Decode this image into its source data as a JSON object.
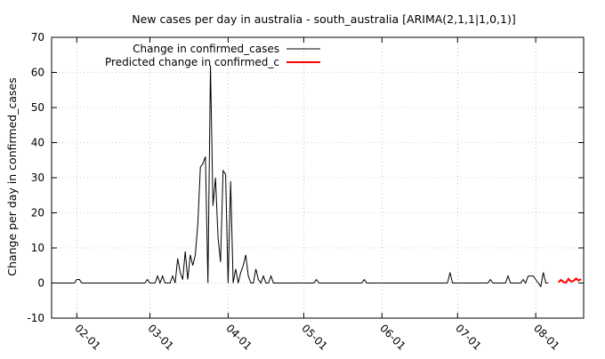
{
  "chart_data": {
    "type": "line",
    "title": "New cases per day in australia - south_australia [ARIMA(2,1,1|1,0,1)]",
    "ylabel": "Change per day in confirmed_cases",
    "xlabel": "",
    "ylim": [
      -10,
      70
    ],
    "yticks": [
      -10,
      0,
      10,
      20,
      30,
      40,
      50,
      60,
      70
    ],
    "xlim": [
      "2020-01-22",
      "2020-08-20"
    ],
    "xticks": [
      {
        "date": "2020-02-01",
        "label": "02-01"
      },
      {
        "date": "2020-03-01",
        "label": "03-01"
      },
      {
        "date": "2020-04-01",
        "label": "04-01"
      },
      {
        "date": "2020-05-01",
        "label": "05-01"
      },
      {
        "date": "2020-06-01",
        "label": "06-01"
      },
      {
        "date": "2020-07-01",
        "label": "07-01"
      },
      {
        "date": "2020-08-01",
        "label": "08-01"
      }
    ],
    "grid": true,
    "legend_position": "top-left",
    "series": [
      {
        "name": "Change in confirmed_cases",
        "color": "#000000",
        "points": [
          [
            "2020-01-22",
            0
          ],
          [
            "2020-01-31",
            0
          ],
          [
            "2020-02-01",
            1
          ],
          [
            "2020-02-02",
            1
          ],
          [
            "2020-02-03",
            0
          ],
          [
            "2020-02-28",
            0
          ],
          [
            "2020-02-29",
            1
          ],
          [
            "2020-03-01",
            0
          ],
          [
            "2020-03-03",
            0
          ],
          [
            "2020-03-04",
            2
          ],
          [
            "2020-03-05",
            0
          ],
          [
            "2020-03-06",
            2
          ],
          [
            "2020-03-07",
            0
          ],
          [
            "2020-03-09",
            0
          ],
          [
            "2020-03-10",
            2
          ],
          [
            "2020-03-11",
            0
          ],
          [
            "2020-03-12",
            7
          ],
          [
            "2020-03-13",
            3
          ],
          [
            "2020-03-14",
            1
          ],
          [
            "2020-03-15",
            9
          ],
          [
            "2020-03-16",
            1
          ],
          [
            "2020-03-17",
            8
          ],
          [
            "2020-03-18",
            5
          ],
          [
            "2020-03-19",
            8
          ],
          [
            "2020-03-20",
            17
          ],
          [
            "2020-03-21",
            33
          ],
          [
            "2020-03-22",
            34
          ],
          [
            "2020-03-23",
            36
          ],
          [
            "2020-03-24",
            0
          ],
          [
            "2020-03-25",
            62
          ],
          [
            "2020-03-26",
            22
          ],
          [
            "2020-03-27",
            30
          ],
          [
            "2020-03-28",
            13
          ],
          [
            "2020-03-29",
            6
          ],
          [
            "2020-03-30",
            32
          ],
          [
            "2020-03-31",
            31
          ],
          [
            "2020-04-01",
            0
          ],
          [
            "2020-04-02",
            29
          ],
          [
            "2020-04-03",
            0
          ],
          [
            "2020-04-04",
            4
          ],
          [
            "2020-04-05",
            0
          ],
          [
            "2020-04-06",
            3
          ],
          [
            "2020-04-07",
            5
          ],
          [
            "2020-04-08",
            8
          ],
          [
            "2020-04-09",
            2
          ],
          [
            "2020-04-10",
            0
          ],
          [
            "2020-04-11",
            0
          ],
          [
            "2020-04-12",
            4
          ],
          [
            "2020-04-13",
            1
          ],
          [
            "2020-04-14",
            0
          ],
          [
            "2020-04-15",
            2
          ],
          [
            "2020-04-16",
            0
          ],
          [
            "2020-04-17",
            0
          ],
          [
            "2020-04-18",
            2
          ],
          [
            "2020-04-19",
            0
          ],
          [
            "2020-05-05",
            0
          ],
          [
            "2020-05-06",
            1
          ],
          [
            "2020-05-07",
            0
          ],
          [
            "2020-05-24",
            0
          ],
          [
            "2020-05-25",
            1
          ],
          [
            "2020-05-26",
            0
          ],
          [
            "2020-06-27",
            0
          ],
          [
            "2020-06-28",
            3
          ],
          [
            "2020-06-29",
            0
          ],
          [
            "2020-07-13",
            0
          ],
          [
            "2020-07-14",
            1
          ],
          [
            "2020-07-15",
            0
          ],
          [
            "2020-07-20",
            0
          ],
          [
            "2020-07-21",
            2
          ],
          [
            "2020-07-22",
            0
          ],
          [
            "2020-07-26",
            0
          ],
          [
            "2020-07-27",
            1
          ],
          [
            "2020-07-28",
            0
          ],
          [
            "2020-07-29",
            2
          ],
          [
            "2020-07-30",
            2
          ],
          [
            "2020-07-31",
            2
          ],
          [
            "2020-08-02",
            0
          ],
          [
            "2020-08-03",
            -1
          ],
          [
            "2020-08-04",
            3
          ],
          [
            "2020-08-05",
            0
          ],
          [
            "2020-08-06",
            0
          ]
        ]
      },
      {
        "name": "Predicted change in confirmed_c",
        "color": "#ff0000",
        "points": [
          [
            "2020-08-10",
            0.2
          ],
          [
            "2020-08-11",
            0.9
          ],
          [
            "2020-08-12",
            0.3
          ],
          [
            "2020-08-13",
            0.1
          ],
          [
            "2020-08-14",
            1.2
          ],
          [
            "2020-08-15",
            0.4
          ],
          [
            "2020-08-16",
            0.6
          ],
          [
            "2020-08-17",
            1.3
          ],
          [
            "2020-08-18",
            0.7
          ],
          [
            "2020-08-19",
            1.1
          ]
        ]
      }
    ]
  }
}
